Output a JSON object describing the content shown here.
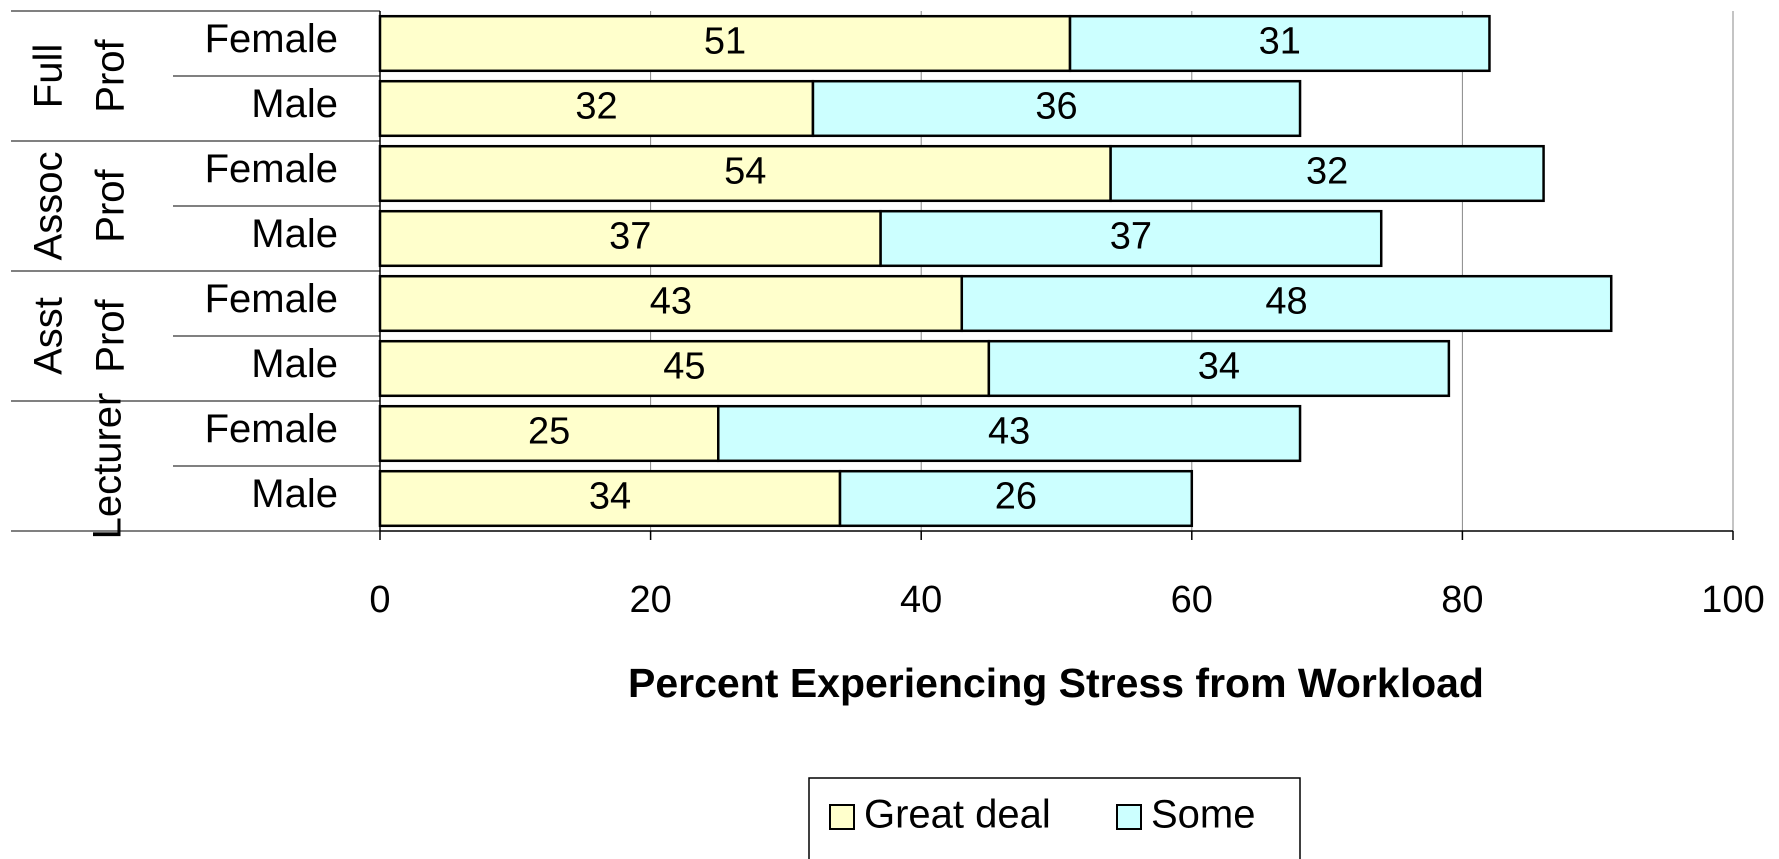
{
  "chart_data": {
    "type": "stacked-bar-horizontal",
    "groups": [
      {
        "lines": [
          "Full",
          "Prof"
        ],
        "categories": [
          "Female",
          "Male"
        ]
      },
      {
        "lines": [
          "Assoc",
          "Prof"
        ],
        "categories": [
          "Female",
          "Male"
        ]
      },
      {
        "lines": [
          "Asst",
          "Prof"
        ],
        "categories": [
          "Female",
          "Male"
        ]
      },
      {
        "lines": [
          "Lecturer"
        ],
        "categories": [
          "Female",
          "Male"
        ]
      }
    ],
    "series": [
      {
        "name": "Great deal",
        "color": "#ffffcc",
        "values": [
          51,
          32,
          54,
          37,
          43,
          45,
          25,
          34
        ]
      },
      {
        "name": "Some",
        "color": "#ccffff",
        "values": [
          31,
          36,
          32,
          37,
          48,
          34,
          43,
          26
        ]
      }
    ],
    "xlabel": "Percent Experiencing Stress from Workload",
    "xlim": [
      0,
      100
    ],
    "xticks": [
      0,
      20,
      40,
      60,
      80,
      100
    ],
    "grid": true
  }
}
